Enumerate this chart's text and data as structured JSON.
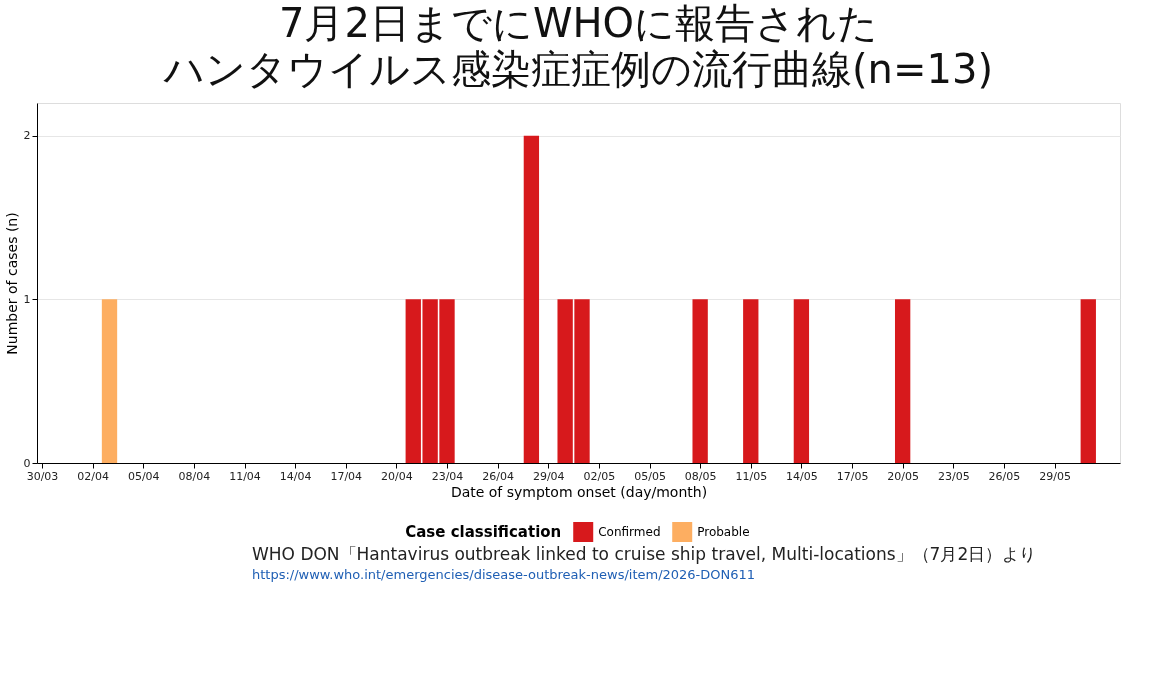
{
  "chart_data": {
    "type": "bar",
    "title": "7月2日までにWHOに報告されたハンタウイルス感染症症例の流行曲線(n=13)",
    "xlabel": "Date of symptom onset (day/month)",
    "ylabel": "Number of cases (n)",
    "legend_title": "Case classification",
    "series": [
      {
        "name": "Confirmed",
        "color": "#d7191c",
        "x": [
          "2026-04-21",
          "2026-04-22",
          "2026-04-23",
          "2026-04-28",
          "2026-04-30",
          "2026-05-01",
          "2026-05-08",
          "2026-05-11",
          "2026-05-14",
          "2026-05-20",
          "2026-05-31"
        ],
        "values": [
          1,
          1,
          1,
          2,
          1,
          1,
          1,
          1,
          1,
          1,
          1
        ]
      },
      {
        "name": "Probable",
        "color": "#fdae61",
        "x": [
          "2026-04-03"
        ],
        "values": [
          1
        ]
      }
    ],
    "xlim": [
      "2026-03-30",
      "2026-06-01T14:00"
    ],
    "xticks": [
      {
        "value": "2026-03-30",
        "label": "30/03"
      },
      {
        "value": "2026-04-02",
        "label": "02/04"
      },
      {
        "value": "2026-04-05",
        "label": "05/04"
      },
      {
        "value": "2026-04-08",
        "label": "08/04"
      },
      {
        "value": "2026-04-11",
        "label": "11/04"
      },
      {
        "value": "2026-04-14",
        "label": "14/04"
      },
      {
        "value": "2026-04-17",
        "label": "17/04"
      },
      {
        "value": "2026-04-20",
        "label": "20/04"
      },
      {
        "value": "2026-04-23",
        "label": "23/04"
      },
      {
        "value": "2026-04-26",
        "label": "26/04"
      },
      {
        "value": "2026-04-29",
        "label": "29/04"
      },
      {
        "value": "2026-05-02",
        "label": "02/05"
      },
      {
        "value": "2026-05-05",
        "label": "05/05"
      },
      {
        "value": "2026-05-08",
        "label": "08/05"
      },
      {
        "value": "2026-05-11",
        "label": "11/05"
      },
      {
        "value": "2026-05-14",
        "label": "14/05"
      },
      {
        "value": "2026-05-17",
        "label": "17/05"
      },
      {
        "value": "2026-05-20",
        "label": "20/05"
      },
      {
        "value": "2026-05-23",
        "label": "23/05"
      },
      {
        "value": "2026-05-26",
        "label": "26/05"
      },
      {
        "value": "2026-05-29",
        "label": "29/05"
      }
    ],
    "ylim": [
      0,
      2.2
    ],
    "yticks": [
      0,
      1,
      2
    ],
    "grid": "y",
    "legend": "bottom",
    "annotations": [
      "WHO DON「Hantavirus outbreak linked to cruise ship travel, Multi-locations」（7月2日）より",
      "https://www.who.int/emergencies/disease-outbreak-news/item/2026-DON611"
    ]
  }
}
